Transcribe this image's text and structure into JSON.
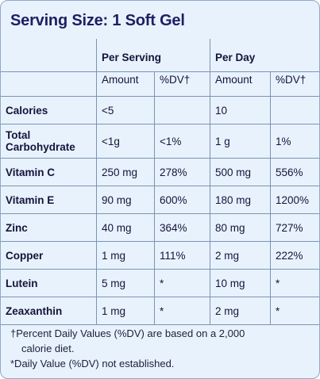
{
  "title": "Serving Size: 1 Soft Gel",
  "columns": {
    "per_serving": "Per Serving",
    "per_day": "Per Day",
    "amount": "Amount",
    "dv": "%DV†"
  },
  "rows": [
    {
      "name": "Calories",
      "serving_amount": "<5",
      "serving_dv": "",
      "day_amount": "10",
      "day_dv": ""
    },
    {
      "name": "Total Carbohydrate",
      "serving_amount": "<1g",
      "serving_dv": "<1%",
      "day_amount": "1 g",
      "day_dv": "1%"
    },
    {
      "name": "Vitamin C",
      "serving_amount": "250 mg",
      "serving_dv": "278%",
      "day_amount": "500 mg",
      "day_dv": "556%"
    },
    {
      "name": "Vitamin E",
      "serving_amount": "90 mg",
      "serving_dv": "600%",
      "day_amount": "180 mg",
      "day_dv": "1200%"
    },
    {
      "name": "Zinc",
      "serving_amount": "40 mg",
      "serving_dv": "364%",
      "day_amount": "80 mg",
      "day_dv": "727%"
    },
    {
      "name": "Copper",
      "serving_amount": "1 mg",
      "serving_dv": "111%",
      "day_amount": "2 mg",
      "day_dv": "222%"
    },
    {
      "name": "Lutein",
      "serving_amount": "5 mg",
      "serving_dv": "*",
      "day_amount": "10 mg",
      "day_dv": "*"
    },
    {
      "name": "Zeaxanthin",
      "serving_amount": "1 mg",
      "serving_dv": "*",
      "day_amount": "2 mg",
      "day_dv": "*"
    }
  ],
  "footnotes": {
    "dv_line1": "†Percent Daily Values (%DV) are based on a 2,000",
    "dv_line2": "calorie diet.",
    "not_established": "*Daily Value (%DV) not established."
  },
  "colors": {
    "background": "#e8f2fd",
    "border": "#7d93b3",
    "title": "#1c1f63"
  }
}
